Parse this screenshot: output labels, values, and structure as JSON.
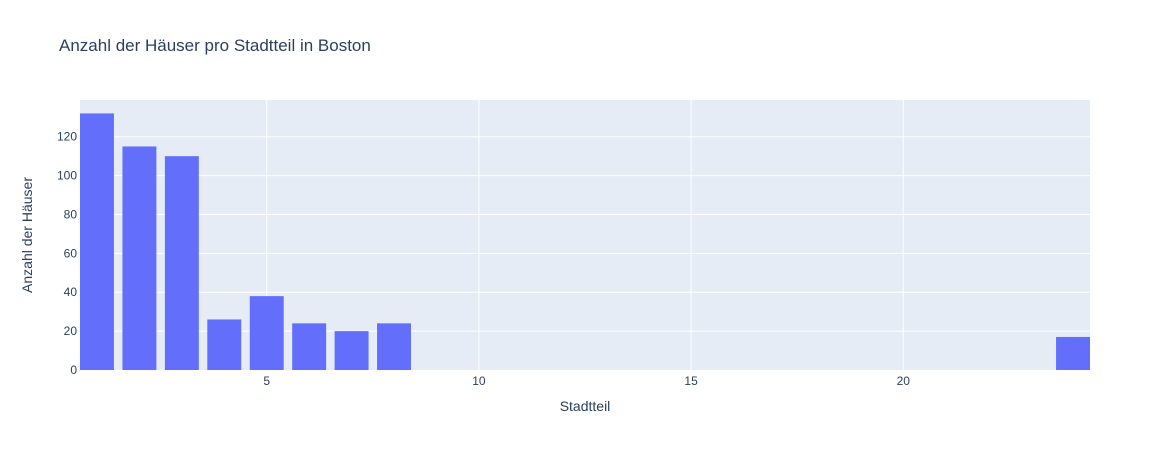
{
  "chart_data": {
    "type": "bar",
    "title": "Anzahl der Häuser pro Stadtteil in Boston",
    "xlabel": "Stadtteil",
    "ylabel": "Anzahl der Häuser",
    "x": [
      1,
      2,
      3,
      4,
      5,
      6,
      7,
      8,
      24
    ],
    "values": [
      132,
      115,
      110,
      26,
      38,
      24,
      20,
      24,
      17
    ],
    "xlim": [
      0.6,
      24.4
    ],
    "ylim": [
      0,
      138.9
    ],
    "x_ticks": [
      5,
      10,
      15,
      20
    ],
    "y_ticks": [
      0,
      20,
      40,
      60,
      80,
      100,
      120
    ],
    "grid": true,
    "colors": {
      "bar": "#636efa",
      "plot_bg": "#e5ecf6",
      "grid": "#ffffff",
      "text": "#2a3f5f"
    }
  }
}
